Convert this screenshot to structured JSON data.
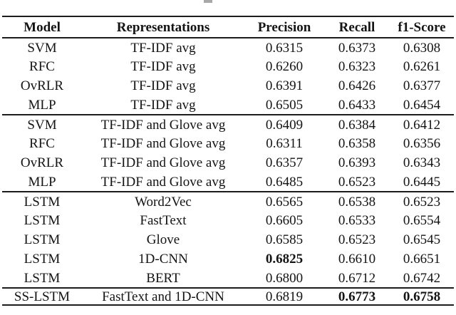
{
  "page": {
    "background_color": "#ffffff",
    "text_color": "#141414",
    "rule_color": "#1c1c1c",
    "caption_fragment_visible": true
  },
  "table": {
    "columns": [
      "Model",
      "Representations",
      "Precision",
      "Recall",
      "f1-Score"
    ],
    "sections": [
      {
        "rows": [
          [
            "SVM",
            "TF-IDF avg",
            "0.6315",
            "0.6373",
            "0.6308"
          ],
          [
            "RFC",
            "TF-IDF avg",
            "0.6260",
            "0.6323",
            "0.6261"
          ],
          [
            "OvRLR",
            "TF-IDF avg",
            "0.6391",
            "0.6426",
            "0.6377"
          ],
          [
            "MLP",
            "TF-IDF avg",
            "0.6505",
            "0.6433",
            "0.6454"
          ]
        ]
      },
      {
        "rows": [
          [
            "SVM",
            "TF-IDF and Glove avg",
            "0.6409",
            "0.6384",
            "0.6412"
          ],
          [
            "RFC",
            "TF-IDF and Glove avg",
            "0.6311",
            "0.6358",
            "0.6356"
          ],
          [
            "OvRLR",
            "TF-IDF and Glove avg",
            "0.6357",
            "0.6393",
            "0.6343"
          ],
          [
            "MLP",
            "TF-IDF and Glove avg",
            "0.6485",
            "0.6523",
            "0.6445"
          ]
        ]
      },
      {
        "rows": [
          [
            "LSTM",
            "Word2Vec",
            "0.6565",
            "0.6538",
            "0.6523"
          ],
          [
            "LSTM",
            "FastText",
            "0.6605",
            "0.6533",
            "0.6554"
          ],
          [
            "LSTM",
            "Glove",
            "0.6585",
            "0.6523",
            "0.6545"
          ],
          [
            "LSTM",
            "1D-CNN",
            "0.6825",
            "0.6610",
            "0.6651"
          ],
          [
            "LSTM",
            "BERT",
            "0.6800",
            "0.6712",
            "0.6742"
          ]
        ]
      },
      {
        "rows": [
          [
            "SS-LSTM",
            "FastText and 1D-CNN",
            "0.6819",
            "0.6773",
            "0.6758"
          ]
        ]
      }
    ],
    "emphasis": {
      "best_precision": "0.6825",
      "best_recall": "0.6773",
      "best_f1_score": "0.6758"
    }
  }
}
